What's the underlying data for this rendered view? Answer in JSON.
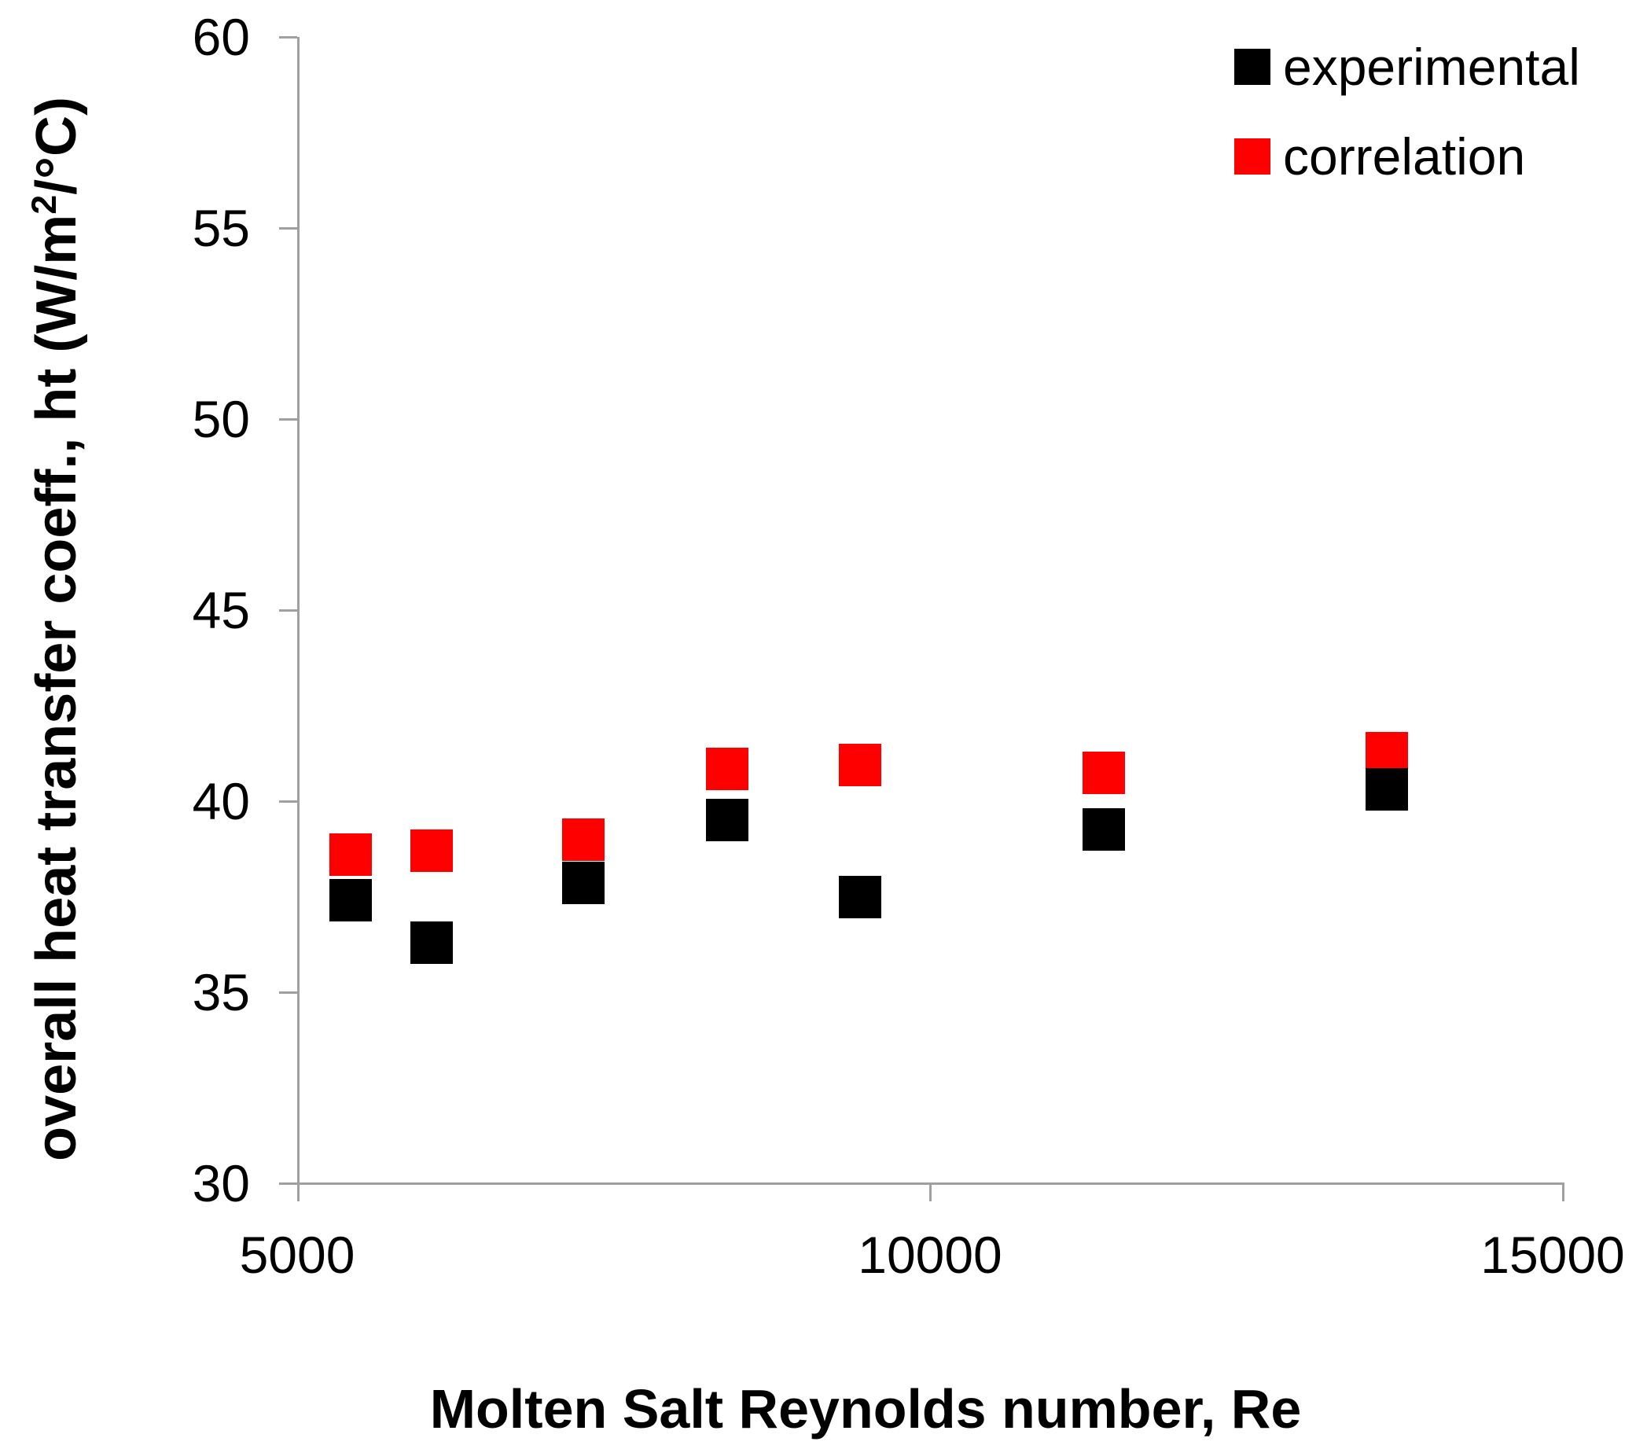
{
  "chart_data": {
    "type": "scatter",
    "title": "",
    "x": [
      5420,
      6060,
      7260,
      8400,
      9450,
      11370,
      13610
    ],
    "series": [
      {
        "name": "experimental",
        "color": "#000000",
        "values": [
          37.4,
          36.3,
          37.85,
          39.5,
          37.5,
          39.25,
          40.3
        ]
      },
      {
        "name": "correlation",
        "color": "#ff0000",
        "values": [
          38.6,
          38.7,
          39.0,
          40.85,
          40.95,
          40.75,
          41.25
        ]
      }
    ],
    "xlabel": "Molten Salt Reynolds number, Re",
    "ylabel": "overall heat transfer coeff., ht (W/m2/°C)",
    "ylabel_parts": {
      "prefix": "overall heat transfer coeff., ht (W/m",
      "sup": "2",
      "suffix": "/°C)"
    },
    "xlim": [
      5000,
      15000
    ],
    "ylim": [
      30,
      60
    ],
    "x_ticks": [
      "5000",
      "10000",
      "15000"
    ],
    "x_tick_values": [
      5000,
      10000,
      15000
    ],
    "y_ticks": [
      "30",
      "35",
      "40",
      "45",
      "50",
      "55",
      "60"
    ],
    "y_tick_values": [
      30,
      35,
      40,
      45,
      50,
      55,
      60
    ],
    "legend_position": "top-right",
    "grid": false,
    "marker": "square",
    "axis_color": "#a0a0a0"
  }
}
